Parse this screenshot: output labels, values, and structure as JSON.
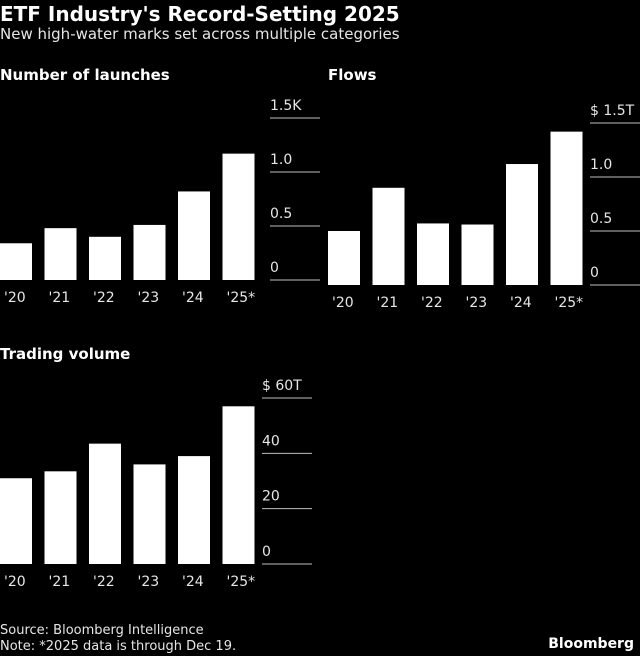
{
  "header": {
    "title": "ETF Industry's Record-Setting 2025",
    "subtitle": "New high-water marks set across multiple categories"
  },
  "chart_data": [
    {
      "type": "bar",
      "title": "Number of launches",
      "categories": [
        "'20",
        "'21",
        "'22",
        "'23",
        "'24",
        "'25*"
      ],
      "values": [
        0.34,
        0.48,
        0.4,
        0.51,
        0.82,
        1.17
      ],
      "ylim": [
        0,
        1.5
      ],
      "yticks": [
        "0",
        "0.5",
        "1.0",
        "1.5K"
      ],
      "grid": false
    },
    {
      "type": "bar",
      "title": "Flows",
      "categories": [
        "'20",
        "'21",
        "'22",
        "'23",
        "'24",
        "'25*"
      ],
      "values": [
        0.5,
        0.9,
        0.57,
        0.56,
        1.12,
        1.42
      ],
      "ylim": [
        0,
        1.5
      ],
      "yticks": [
        "0",
        "0.5",
        "1.0",
        "$ 1.5T"
      ],
      "grid": false
    },
    {
      "type": "bar",
      "title": "Trading volume",
      "categories": [
        "'20",
        "'21",
        "'22",
        "'23",
        "'24",
        "'25*"
      ],
      "values": [
        31,
        33.5,
        43.5,
        36,
        39,
        57
      ],
      "ylim": [
        0,
        60
      ],
      "yticks": [
        "0",
        "20",
        "40",
        "$ 60T"
      ],
      "grid": false
    }
  ],
  "footer": {
    "source": "Source: Bloomberg Intelligence",
    "note": "Note: *2025 data is through Dec 19.",
    "brand": "Bloomberg"
  },
  "colors": {
    "background": "#000000",
    "bar": "#ffffff",
    "text": "#e6e6e6"
  }
}
